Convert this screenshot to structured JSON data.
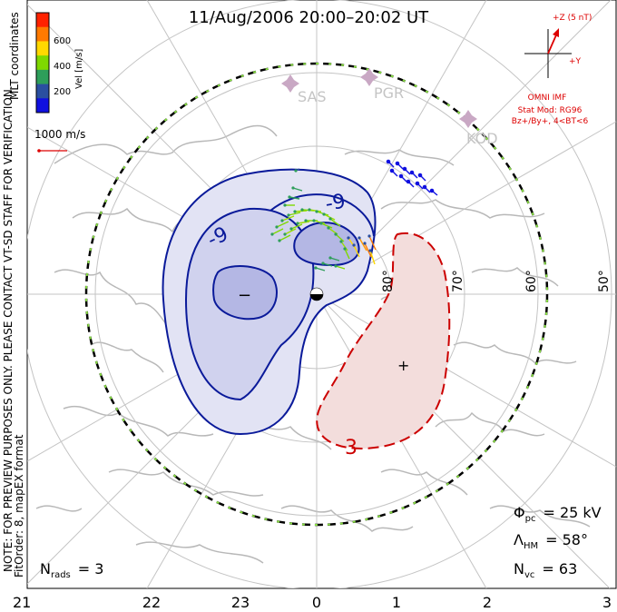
{
  "title": "11/Aug/2006 20:00–20:02 UT",
  "colorbar": {
    "unit_label": "Vel [m/s]",
    "ticks": [
      "600",
      "400",
      "200"
    ],
    "colors": [
      "#ff2200",
      "#ff7a00",
      "#ffd800",
      "#7fd800",
      "#2e9e5a",
      "#2a4fa0",
      "#1010e0"
    ]
  },
  "side_notes": {
    "coords": "MLT coordinates",
    "verification": "NOTE: FOR PREVIEW PURPOSES ONLY. PLEASE CONTACT VT-SD STAFF FOR VERIFICATION.",
    "fitorder": "FitOrder: 8, mapEX format"
  },
  "scale_vector": {
    "label": "1000 m/s"
  },
  "imf": {
    "z_label": "+Z (5 nT)",
    "y_label": "+Y",
    "source": "OMNI IMF",
    "model": "Stat Mod: RG96",
    "condition": "Bz+/By+, 4<BT<6",
    "color": "#dd0000"
  },
  "stations": [
    "SAS",
    "PGR",
    "KOD"
  ],
  "latitude_labels": [
    "80°",
    "70°",
    "60°",
    "50°"
  ],
  "contours": {
    "negative_label": "-9",
    "positive_label": "3",
    "min_marker": "−",
    "max_marker": "+",
    "negative_color": "#0a1a9a",
    "positive_color": "#cc0000"
  },
  "stats": {
    "phi": {
      "symbol": "Φ",
      "sub": "pc",
      "value": "= 25 kV"
    },
    "lambda": {
      "symbol": "Λ",
      "sub": "HM",
      "value": "= 58°"
    },
    "nvc": {
      "symbol": "N",
      "sub": "vc",
      "value": "= 63"
    },
    "nrads": {
      "symbol": "N",
      "sub": "rads",
      "value": "= 3"
    }
  },
  "mlt_labels": [
    "21",
    "22",
    "23",
    "0",
    "1",
    "2",
    "3"
  ]
}
